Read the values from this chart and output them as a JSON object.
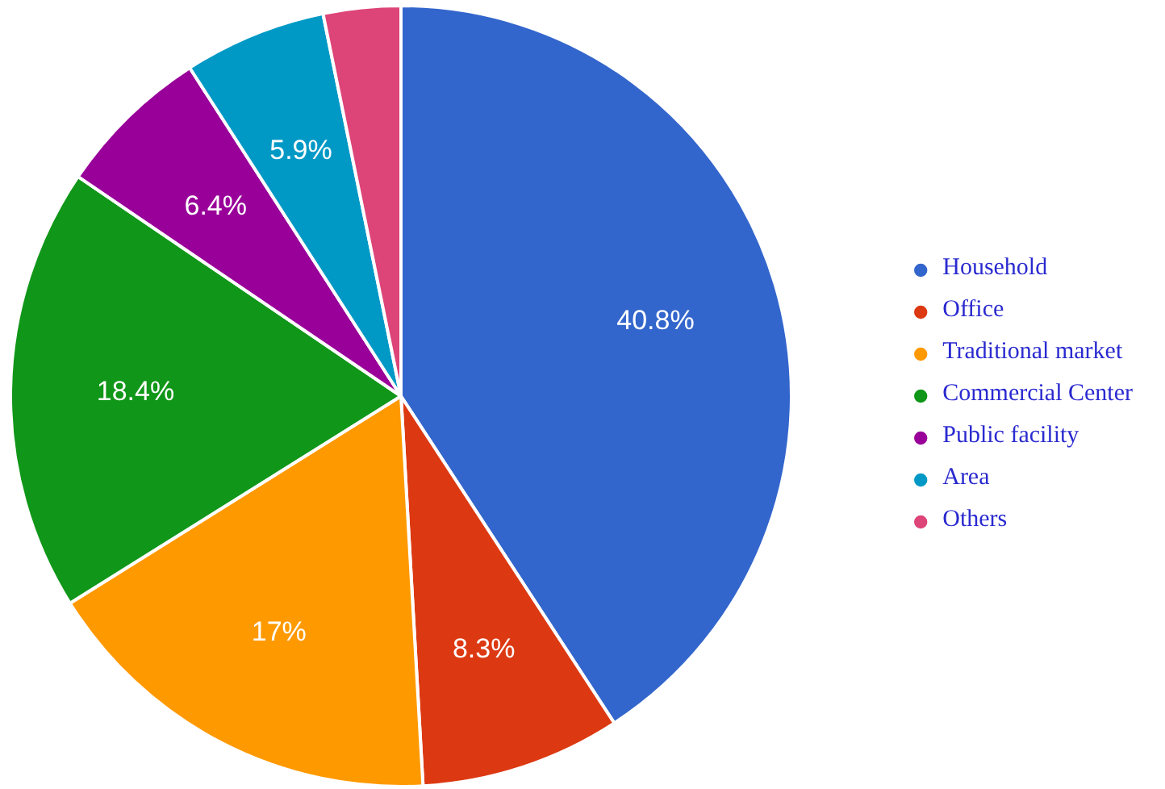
{
  "chart_data": {
    "type": "pie",
    "categories": [
      "Household",
      "Office",
      "Traditional market",
      "Commercial Center",
      "Public facility",
      "Area",
      "Others"
    ],
    "values": [
      40.8,
      8.3,
      17,
      18.4,
      6.4,
      5.9,
      3.2
    ],
    "colors": [
      "#3366cc",
      "#dc3912",
      "#ff9900",
      "#109618",
      "#990099",
      "#0099c6",
      "#dd4477"
    ],
    "value_labels": [
      "40.8%",
      "8.3%",
      "17%",
      "18.4%",
      "6.4%",
      "5.9%",
      null
    ],
    "legend": "right"
  }
}
